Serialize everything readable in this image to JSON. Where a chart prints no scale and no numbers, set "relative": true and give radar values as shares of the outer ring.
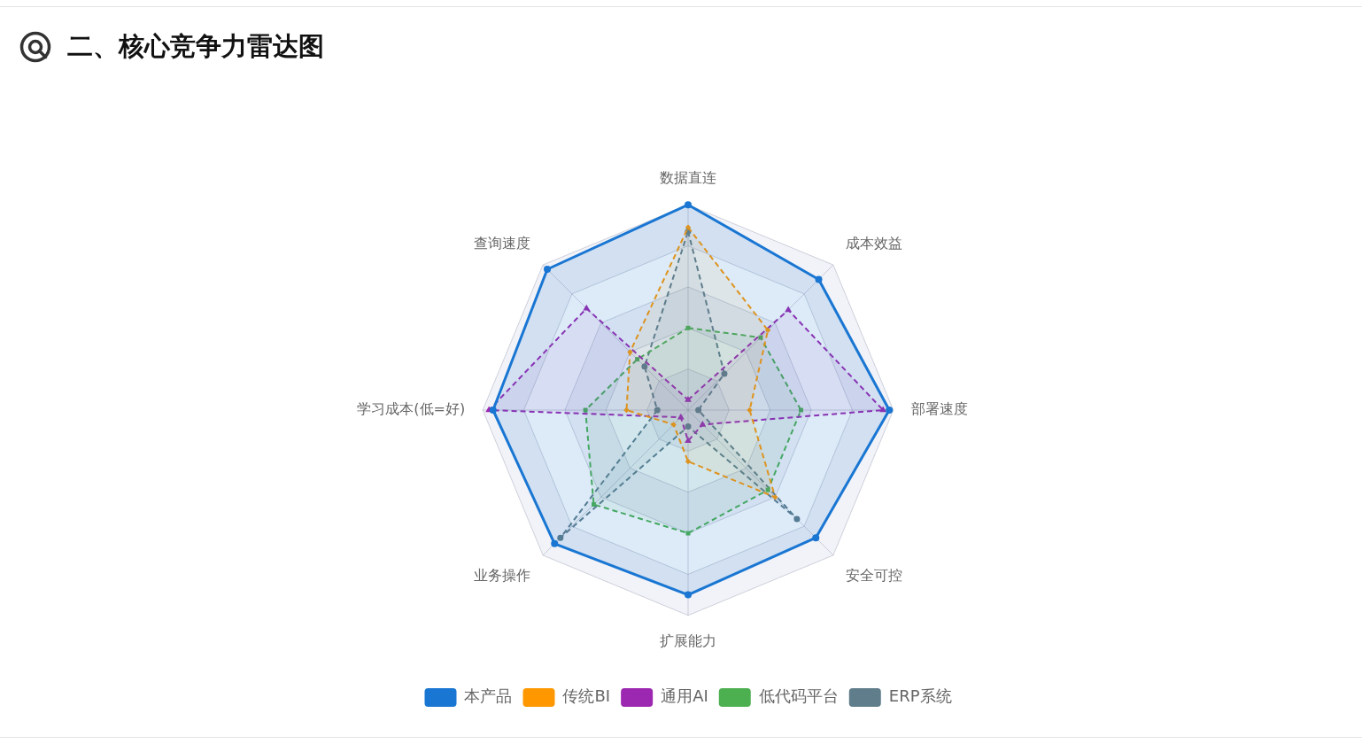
{
  "chart_data": {
    "type": "radar",
    "title": "二、核心竞争力雷达图",
    "categories": [
      "数据直连",
      "成本效益",
      "部署速度",
      "安全可控",
      "扩展能力",
      "业务操作",
      "学习成本(低=好)",
      "查询速度"
    ],
    "relative": true,
    "grid": true,
    "legend": "bottom",
    "series": [
      {
        "name": "本产品",
        "color": "#1976d2",
        "marker": "circle",
        "line_style": "solid",
        "values": [
          1.0,
          0.9,
          0.98,
          0.88,
          0.9,
          0.92,
          0.95,
          0.97
        ]
      },
      {
        "name": "传统BI",
        "color": "#ff9800",
        "marker": "diamond",
        "line_style": "dashed",
        "values": [
          0.89,
          0.55,
          0.3,
          0.6,
          0.25,
          0.1,
          0.3,
          0.4
        ]
      },
      {
        "name": "通用AI",
        "color": "#9c27b0",
        "marker": "triangle",
        "line_style": "dashed",
        "values": [
          0.05,
          0.69,
          0.95,
          0.1,
          0.15,
          0.05,
          0.97,
          0.7
        ]
      },
      {
        "name": "低代码平台",
        "color": "#4caf50",
        "marker": "square",
        "line_style": "dashed",
        "values": [
          0.4,
          0.5,
          0.55,
          0.55,
          0.6,
          0.65,
          0.5,
          0.35
        ]
      },
      {
        "name": "ERP系统",
        "color": "#607d8b",
        "marker": "circle",
        "line_style": "dashed",
        "values": [
          0.87,
          0.25,
          0.05,
          0.75,
          0.08,
          0.88,
          0.15,
          0.3
        ]
      }
    ]
  }
}
